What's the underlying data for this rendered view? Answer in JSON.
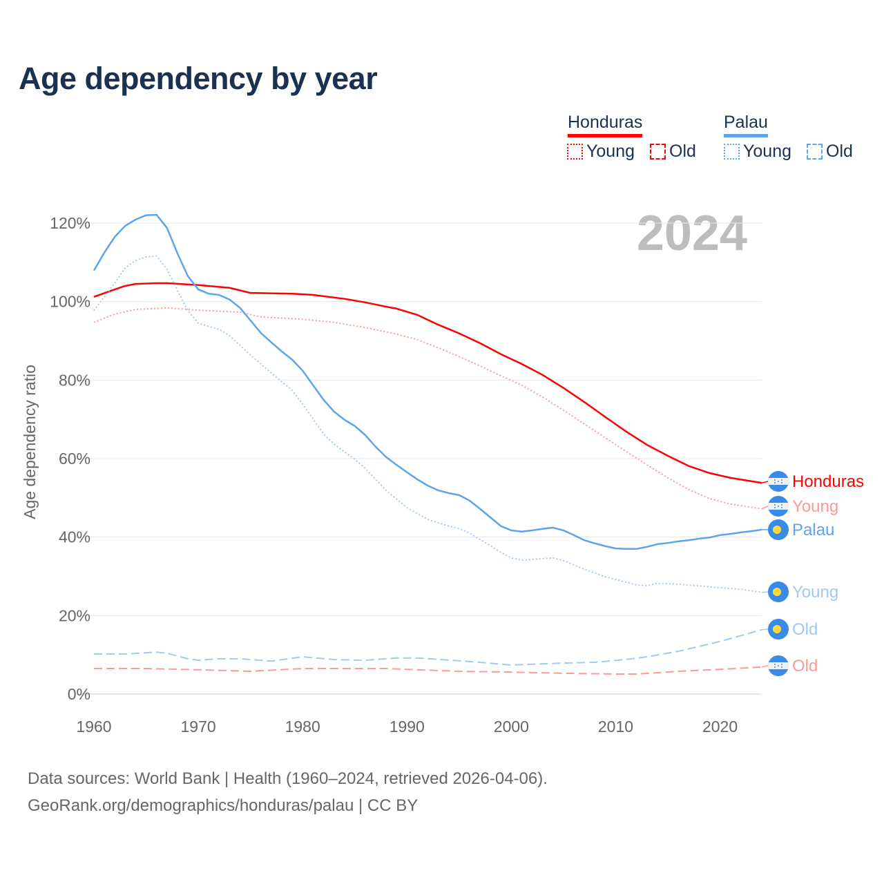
{
  "title": "Age dependency by year",
  "watermark_year": "2024",
  "legend": {
    "groups": [
      {
        "name": "Honduras",
        "color": "#ff0000",
        "young": "Young",
        "old": "Old"
      },
      {
        "name": "Palau",
        "color": "#5ba4ee",
        "young": "Young",
        "old": "Old"
      }
    ]
  },
  "footer": {
    "line1": "Data sources: World Bank | Health (1960–2024, retrieved 2026-04-06).",
    "line2": "GeoRank.org/demographics/honduras/palau | CC BY"
  },
  "chart_data": {
    "type": "line",
    "title": "Age dependency by year",
    "xlabel": "",
    "ylabel": "Age dependency ratio",
    "xlim": [
      1960,
      2024
    ],
    "ylim": [
      0,
      120
    ],
    "x_ticks": [
      "1960",
      "1970",
      "1980",
      "1990",
      "2000",
      "2010",
      "2020"
    ],
    "y_ticks": [
      "0%",
      "20%",
      "40%",
      "60%",
      "80%",
      "100%",
      "120%"
    ],
    "grid": true,
    "series": [
      {
        "name": "Honduras",
        "label": "Honduras",
        "country": "Honduras",
        "kind": "total",
        "color": "#ff0000",
        "style": "solid",
        "points": [
          [
            1960,
            101.2
          ],
          [
            1962,
            103.1
          ],
          [
            1963,
            104
          ],
          [
            1964,
            104.5
          ],
          [
            1966,
            104.7
          ],
          [
            1967,
            104.7
          ],
          [
            1970,
            104.2
          ],
          [
            1973,
            103.5
          ],
          [
            1975,
            102.2
          ],
          [
            1979,
            102
          ],
          [
            1981,
            101.7
          ],
          [
            1984,
            100.7
          ],
          [
            1986,
            99.8
          ],
          [
            1988,
            98.7
          ],
          [
            1989,
            98.2
          ],
          [
            1991,
            96.6
          ],
          [
            1993,
            94.1
          ],
          [
            1995,
            91.9
          ],
          [
            1997,
            89.4
          ],
          [
            1999,
            86.6
          ],
          [
            2001,
            84.1
          ],
          [
            2003,
            81.3
          ],
          [
            2005,
            78
          ],
          [
            2007,
            74.4
          ],
          [
            2009,
            70.6
          ],
          [
            2011,
            66.9
          ],
          [
            2013,
            63.5
          ],
          [
            2015,
            60.7
          ],
          [
            2017,
            58.1
          ],
          [
            2019,
            56.3
          ],
          [
            2021,
            55.1
          ],
          [
            2024,
            53.8
          ]
        ]
      },
      {
        "name": "Honduras Young",
        "label": "Young",
        "country": "Honduras",
        "kind": "young",
        "color": "#ff9999",
        "style": "dotted",
        "points": [
          [
            1960,
            94.7
          ],
          [
            1962,
            96.8
          ],
          [
            1964,
            98
          ],
          [
            1967,
            98.4
          ],
          [
            1970,
            97.8
          ],
          [
            1974,
            97.3
          ],
          [
            1976,
            96.1
          ],
          [
            1980,
            95.5
          ],
          [
            1983,
            94.7
          ],
          [
            1986,
            93.4
          ],
          [
            1989,
            91.7
          ],
          [
            1991,
            90.3
          ],
          [
            1993,
            88.2
          ],
          [
            1995,
            86
          ],
          [
            1997,
            83.6
          ],
          [
            1999,
            81.1
          ],
          [
            2001,
            78.7
          ],
          [
            2003,
            75.7
          ],
          [
            2005,
            72.3
          ],
          [
            2007,
            68.8
          ],
          [
            2009,
            65.3
          ],
          [
            2011,
            61.8
          ],
          [
            2013,
            58.4
          ],
          [
            2015,
            55.1
          ],
          [
            2017,
            52.1
          ],
          [
            2019,
            49.8
          ],
          [
            2021,
            48.4
          ],
          [
            2024,
            47.2
          ]
        ]
      },
      {
        "name": "Palau",
        "label": "Palau",
        "country": "Palau",
        "kind": "total",
        "color": "#5ba4ee",
        "style": "solid",
        "points": [
          [
            1960,
            107.9
          ],
          [
            1961,
            112.5
          ],
          [
            1962,
            116.5
          ],
          [
            1963,
            119.3
          ],
          [
            1964,
            120.9
          ],
          [
            1965,
            122
          ],
          [
            1966,
            122.1
          ],
          [
            1967,
            118.8
          ],
          [
            1968,
            112.3
          ],
          [
            1969,
            106.5
          ],
          [
            1970,
            103.1
          ],
          [
            1971,
            102
          ],
          [
            1972,
            101.7
          ],
          [
            1973,
            100.5
          ],
          [
            1974,
            98.4
          ],
          [
            1975,
            95.2
          ],
          [
            1976,
            92
          ],
          [
            1977,
            89.6
          ],
          [
            1978,
            87.3
          ],
          [
            1979,
            85.2
          ],
          [
            1980,
            82.4
          ],
          [
            1981,
            78.7
          ],
          [
            1982,
            75
          ],
          [
            1983,
            72
          ],
          [
            1984,
            69.9
          ],
          [
            1985,
            68.3
          ],
          [
            1986,
            66
          ],
          [
            1987,
            63
          ],
          [
            1988,
            60.4
          ],
          [
            1989,
            58.4
          ],
          [
            1990,
            56.5
          ],
          [
            1991,
            54.7
          ],
          [
            1992,
            53.1
          ],
          [
            1993,
            51.9
          ],
          [
            1994,
            51.2
          ],
          [
            1995,
            50.7
          ],
          [
            1996,
            49.3
          ],
          [
            1997,
            47.2
          ],
          [
            1998,
            45
          ],
          [
            1999,
            42.8
          ],
          [
            2000,
            41.7
          ],
          [
            2001,
            41.4
          ],
          [
            2002,
            41.7
          ],
          [
            2003,
            42.1
          ],
          [
            2004,
            42.4
          ],
          [
            2005,
            41.7
          ],
          [
            2006,
            40.5
          ],
          [
            2007,
            39.2
          ],
          [
            2008,
            38.4
          ],
          [
            2009,
            37.7
          ],
          [
            2010,
            37.1
          ],
          [
            2011,
            37
          ],
          [
            2012,
            37
          ],
          [
            2013,
            37.5
          ],
          [
            2014,
            38.2
          ],
          [
            2015,
            38.5
          ],
          [
            2016,
            38.9
          ],
          [
            2017,
            39.2
          ],
          [
            2018,
            39.6
          ],
          [
            2019,
            39.9
          ],
          [
            2020,
            40.5
          ],
          [
            2021,
            40.8
          ],
          [
            2022,
            41.2
          ],
          [
            2023,
            41.5
          ],
          [
            2024,
            41.9
          ]
        ]
      },
      {
        "name": "Palau Young",
        "label": "Young",
        "country": "Palau",
        "kind": "young",
        "color": "#a3c8f2",
        "style": "dotted",
        "points": [
          [
            1960,
            97.7
          ],
          [
            1962,
            104.7
          ],
          [
            1963,
            108.6
          ],
          [
            1964,
            110.5
          ],
          [
            1965,
            111.4
          ],
          [
            1966,
            111.6
          ],
          [
            1967,
            108.2
          ],
          [
            1968,
            102.9
          ],
          [
            1969,
            97.7
          ],
          [
            1970,
            94.5
          ],
          [
            1972,
            92.9
          ],
          [
            1973,
            91.3
          ],
          [
            1975,
            86.4
          ],
          [
            1977,
            81.8
          ],
          [
            1979,
            77.4
          ],
          [
            1980,
            73.9
          ],
          [
            1982,
            66.3
          ],
          [
            1983,
            63.7
          ],
          [
            1985,
            59.8
          ],
          [
            1986,
            57.5
          ],
          [
            1988,
            51.9
          ],
          [
            1990,
            47.5
          ],
          [
            1992,
            44.5
          ],
          [
            1994,
            42.8
          ],
          [
            1995,
            42.2
          ],
          [
            1996,
            41
          ],
          [
            1998,
            37.8
          ],
          [
            1999,
            36.1
          ],
          [
            2000,
            34.7
          ],
          [
            2001,
            34.1
          ],
          [
            2004,
            34.7
          ],
          [
            2005,
            34
          ],
          [
            2007,
            31.8
          ],
          [
            2009,
            29.9
          ],
          [
            2011,
            28.5
          ],
          [
            2012,
            27.8
          ],
          [
            2013,
            27.6
          ],
          [
            2014,
            28.2
          ],
          [
            2016,
            28
          ],
          [
            2020,
            27.1
          ],
          [
            2022,
            26.7
          ],
          [
            2024,
            25.9
          ]
        ]
      },
      {
        "name": "Palau Old",
        "label": "Old",
        "country": "Palau",
        "kind": "old",
        "color": "#a3c8f2",
        "style": "dashed",
        "points": [
          [
            1960,
            10.2
          ],
          [
            1963,
            10.2
          ],
          [
            1966,
            10.7
          ],
          [
            1967,
            10.4
          ],
          [
            1969,
            9
          ],
          [
            1970,
            8.6
          ],
          [
            1972,
            9
          ],
          [
            1974,
            9
          ],
          [
            1977,
            8.4
          ],
          [
            1980,
            9.5
          ],
          [
            1983,
            8.8
          ],
          [
            1986,
            8.6
          ],
          [
            1989,
            9.2
          ],
          [
            1991,
            9.2
          ],
          [
            1996,
            8.3
          ],
          [
            2000,
            7.4
          ],
          [
            2002,
            7.6
          ],
          [
            2005,
            7.9
          ],
          [
            2008,
            8.1
          ],
          [
            2011,
            8.8
          ],
          [
            2013,
            9.5
          ],
          [
            2016,
            10.9
          ],
          [
            2020,
            13.4
          ],
          [
            2024,
            16.4
          ]
        ]
      },
      {
        "name": "Honduras Old",
        "label": "Old",
        "country": "Honduras",
        "kind": "old",
        "color": "#ff9999",
        "style": "dashed",
        "points": [
          [
            1960,
            6.5
          ],
          [
            1965,
            6.5
          ],
          [
            1970,
            6.2
          ],
          [
            1975,
            5.8
          ],
          [
            1980,
            6.5
          ],
          [
            1988,
            6.5
          ],
          [
            1995,
            5.8
          ],
          [
            2000,
            5.6
          ],
          [
            2005,
            5.3
          ],
          [
            2010,
            5.1
          ],
          [
            2012,
            5.1
          ],
          [
            2016,
            5.8
          ],
          [
            2020,
            6.3
          ],
          [
            2024,
            6.9
          ]
        ]
      }
    ],
    "end_labels_order": [
      "Honduras",
      "Honduras Young",
      "Palau",
      "Palau Young",
      "Palau Old",
      "Honduras Old"
    ]
  }
}
